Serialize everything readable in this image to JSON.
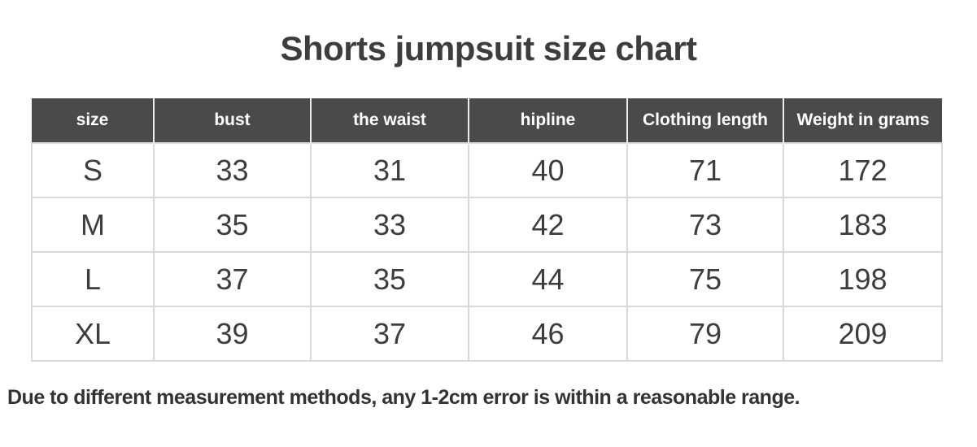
{
  "chart_data": {
    "type": "table",
    "title": "Shorts jumpsuit size chart",
    "columns": [
      "size",
      "bust",
      "the waist",
      "hipline",
      "Clothing length",
      "Weight in grams"
    ],
    "rows": [
      [
        "S",
        33,
        31,
        40,
        71,
        172
      ],
      [
        "M",
        35,
        33,
        42,
        73,
        183
      ],
      [
        "L",
        37,
        35,
        44,
        75,
        198
      ],
      [
        "XL",
        39,
        37,
        46,
        79,
        209
      ]
    ],
    "note": "Due to different measurement methods, any 1-2cm error is within a reasonable range.",
    "layout": {
      "header_position": "top",
      "grid": "on",
      "value_alignment": "center"
    }
  },
  "colors": {
    "page_bg": "#ffffff",
    "title_text": "#3d3d3d",
    "header_bg": "#4a4a4a",
    "header_text": "#ffffff",
    "header_divider": "#ededed",
    "body_text": "#3d3d3d",
    "border": "#d9d9d9",
    "footnote_text": "#333333"
  }
}
